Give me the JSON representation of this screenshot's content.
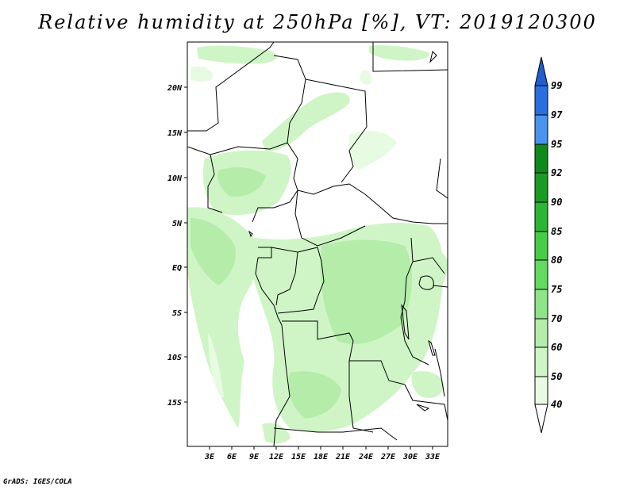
{
  "title": "Relative humidity at 250hPa [%], VT: 2019120300",
  "footer": "GrADS: IGES/COLA",
  "map": {
    "lon_ticks": [
      "3E",
      "6E",
      "9E",
      "12E",
      "15E",
      "18E",
      "21E",
      "24E",
      "27E",
      "30E",
      "33E"
    ],
    "lat_ticks": [
      "20N",
      "15N",
      "10N",
      "5N",
      "EQ",
      "5S",
      "10S",
      "15S"
    ],
    "lon_range": [
      0,
      35
    ],
    "lat_range": [
      -20,
      25
    ]
  },
  "colorbar": {
    "levels": [
      "99",
      "97",
      "95",
      "92",
      "90",
      "85",
      "80",
      "75",
      "70",
      "60",
      "50",
      "40"
    ],
    "colors": {
      "above_99": "#1e5ecf",
      "97_99": "#2a6fe0",
      "95_97": "#4a94ee",
      "92_95": "#0d8a1a",
      "90_92": "#1a9c22",
      "85_90": "#2db536",
      "80_85": "#47cc47",
      "75_80": "#63da5f",
      "70_75": "#8fe388",
      "60_70": "#b3eda9",
      "50_60": "#cff5c6",
      "40_50": "#e7fbe3",
      "below_40": "#ffffff"
    }
  }
}
